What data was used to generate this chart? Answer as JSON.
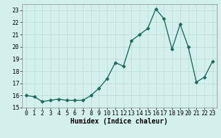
{
  "x": [
    0,
    1,
    2,
    3,
    4,
    5,
    6,
    7,
    8,
    9,
    10,
    11,
    12,
    13,
    14,
    15,
    16,
    17,
    18,
    19,
    20,
    21,
    22,
    23
  ],
  "y": [
    16.0,
    15.9,
    15.5,
    15.6,
    15.7,
    15.6,
    15.6,
    15.6,
    16.0,
    16.6,
    17.4,
    18.7,
    18.4,
    20.5,
    21.0,
    21.5,
    23.1,
    22.3,
    19.8,
    21.85,
    20.0,
    17.1,
    17.5,
    18.8
  ],
  "line_color": "#1a6b5a",
  "marker": "D",
  "markersize": 2.5,
  "linewidth": 1.0,
  "bg_color": "#d4f0ec",
  "grid_color": "#c0ddd8",
  "xlabel": "Humidex (Indice chaleur)",
  "xlabel_fontsize": 7,
  "tick_fontsize": 6,
  "ylim": [
    15.0,
    23.5
  ],
  "yticks": [
    15,
    16,
    17,
    18,
    19,
    20,
    21,
    22,
    23
  ],
  "xlim": [
    -0.5,
    23.5
  ],
  "xticks": [
    0,
    1,
    2,
    3,
    4,
    5,
    6,
    7,
    8,
    9,
    10,
    11,
    12,
    13,
    14,
    15,
    16,
    17,
    18,
    19,
    20,
    21,
    22,
    23
  ]
}
